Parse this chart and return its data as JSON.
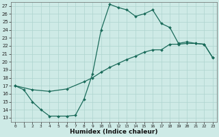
{
  "xlabel": "Humidex (Indice chaleur)",
  "bg_color": "#ceeae6",
  "grid_color": "#aed4cf",
  "line_color": "#1a6b5a",
  "xlim": [
    -0.5,
    23.5
  ],
  "ylim": [
    12.5,
    27.5
  ],
  "xticks": [
    0,
    1,
    2,
    3,
    4,
    5,
    6,
    7,
    8,
    9,
    10,
    11,
    12,
    13,
    14,
    15,
    16,
    17,
    18,
    19,
    20,
    21,
    22,
    23
  ],
  "yticks": [
    13,
    14,
    15,
    16,
    17,
    18,
    19,
    20,
    21,
    22,
    23,
    24,
    25,
    26,
    27
  ],
  "curve1_x": [
    0,
    1,
    2,
    3,
    4,
    5,
    6,
    7,
    8,
    9,
    10,
    11,
    12,
    13,
    14,
    15,
    16,
    17,
    18,
    19,
    20,
    21,
    22,
    23
  ],
  "curve1_y": [
    17.0,
    16.5,
    15.0,
    14.0,
    13.2,
    13.2,
    13.2,
    13.3,
    15.3,
    18.5,
    24.0,
    27.2,
    26.8,
    26.5,
    25.7,
    26.0,
    26.5,
    24.8,
    24.3,
    22.3,
    22.5,
    22.3,
    22.2,
    20.5
  ],
  "curve2_x": [
    0,
    2,
    4,
    6,
    8,
    9,
    10,
    11,
    12,
    13,
    14,
    15,
    16,
    17,
    18,
    19,
    20,
    21,
    22,
    23
  ],
  "curve2_y": [
    17.0,
    16.5,
    16.3,
    16.6,
    17.5,
    18.0,
    18.7,
    19.3,
    19.8,
    20.3,
    20.7,
    21.2,
    21.5,
    21.5,
    22.2,
    22.2,
    22.3,
    22.3,
    22.2,
    20.5
  ],
  "marker": "D",
  "marker_size": 2.0,
  "line_width": 0.9,
  "tick_fontsize": 5.0,
  "label_fontsize": 6.5,
  "label_fontweight": "bold"
}
